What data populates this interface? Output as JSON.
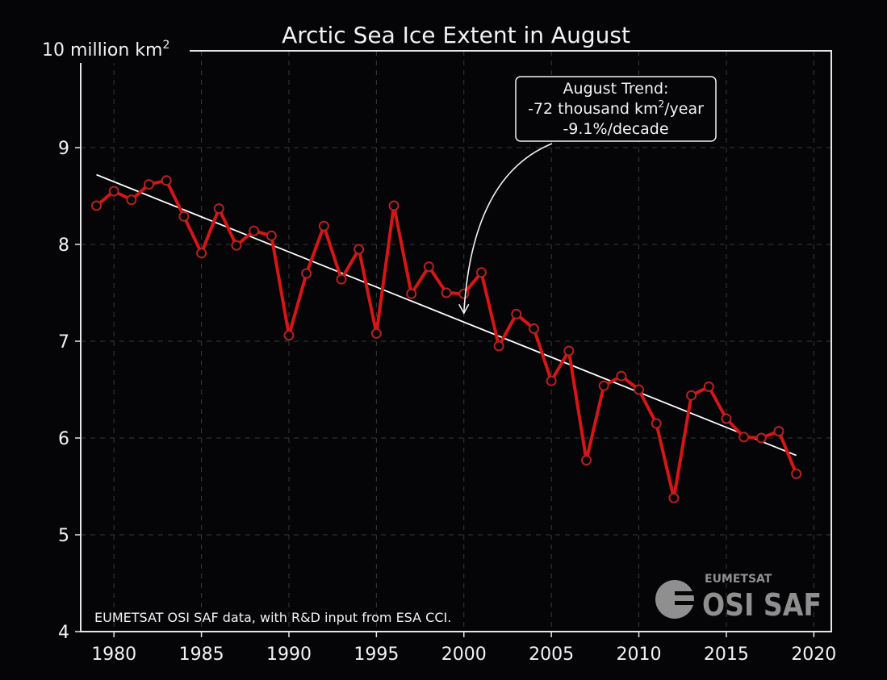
{
  "chart_data": {
    "type": "line",
    "title": "Arctic Sea Ice Extent in August",
    "y_unit_label": "10 million km",
    "y_unit_superscript": "2",
    "xlim": [
      1978.1,
      2021
    ],
    "ylim": [
      4,
      10
    ],
    "x_ticks": [
      "1980",
      "1985",
      "1990",
      "1995",
      "2000",
      "2005",
      "2010",
      "2015",
      "2020"
    ],
    "y_ticks": [
      "4",
      "5",
      "6",
      "7",
      "8",
      "9"
    ],
    "grid": true,
    "series": [
      {
        "color": "#d41616",
        "x": [
          1979,
          1980,
          1981,
          1982,
          1983,
          1984,
          1985,
          1986,
          1987,
          1988,
          1989,
          1990,
          1991,
          1992,
          1993,
          1994,
          1995,
          1996,
          1997,
          1998,
          1999,
          2000,
          2001,
          2002,
          2003,
          2004,
          2005,
          2006,
          2007,
          2008,
          2009,
          2010,
          2011,
          2012,
          2013,
          2014,
          2015,
          2016,
          2017,
          2018,
          2019
        ],
        "values": [
          8.4,
          8.55,
          8.46,
          8.62,
          8.66,
          8.29,
          7.91,
          8.37,
          7.99,
          8.14,
          8.09,
          7.06,
          7.7,
          8.19,
          7.64,
          7.95,
          7.08,
          8.4,
          7.49,
          7.77,
          7.5,
          7.49,
          7.71,
          6.95,
          7.28,
          7.13,
          6.59,
          6.9,
          5.77,
          6.54,
          6.64,
          6.5,
          6.15,
          5.38,
          6.44,
          6.53,
          6.2,
          6.01,
          6.0,
          6.07,
          5.63
        ]
      }
    ],
    "trend": {
      "color": "#ffffff",
      "x": [
        1979,
        2019
      ],
      "values": [
        8.72,
        5.82
      ]
    },
    "annotation": {
      "line1": "August Trend:",
      "line2_prefix": "-72 thousand km",
      "line2_sup": "2",
      "line2_suffix": "/year",
      "line3": "-9.1%/decade",
      "arrow_target": [
        2000,
        7.29
      ]
    },
    "credit": "EUMETSAT OSI SAF data, with R&D input from ESA CCI."
  },
  "logo": {
    "top": "EUMETSAT",
    "main": "OSI SAF"
  }
}
